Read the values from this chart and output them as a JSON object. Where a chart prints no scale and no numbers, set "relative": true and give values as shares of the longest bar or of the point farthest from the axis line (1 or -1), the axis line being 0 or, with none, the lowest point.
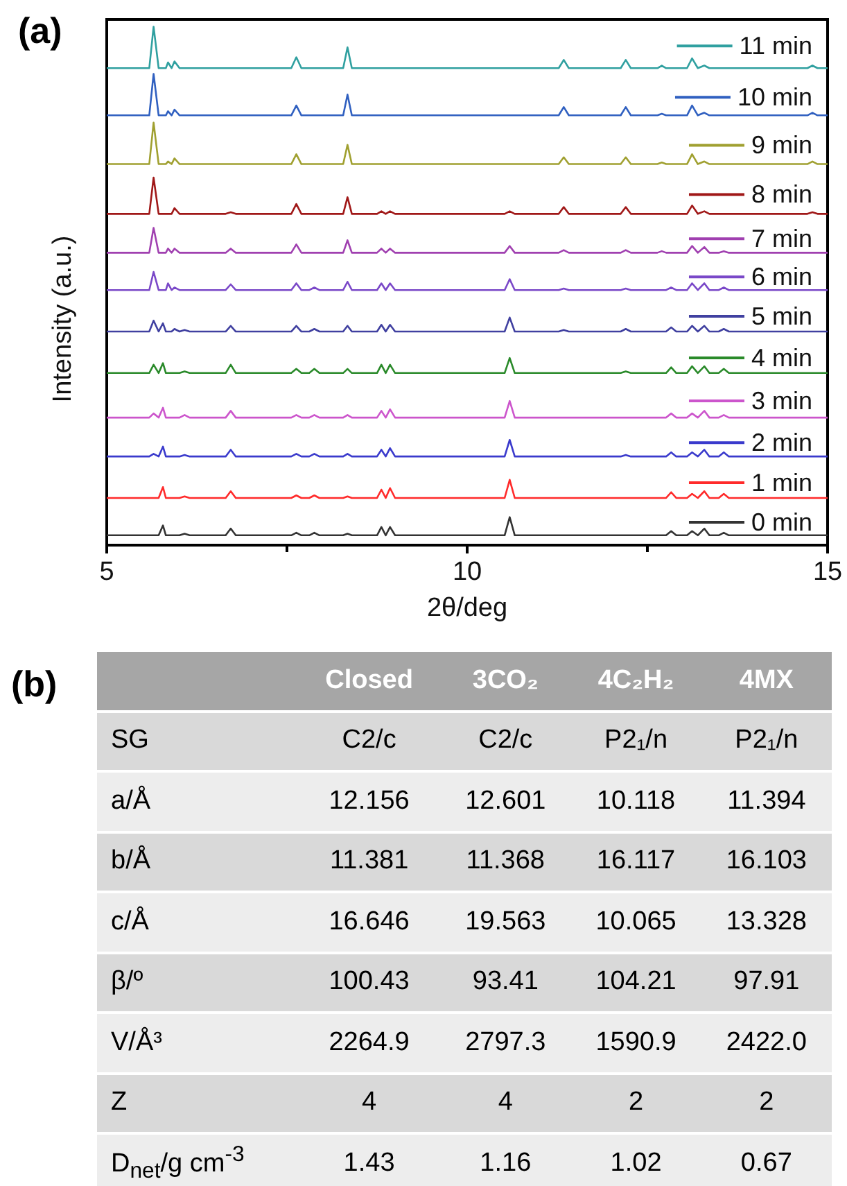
{
  "chart_data": [
    {
      "type": "line",
      "title": "(a)",
      "xlabel": "2θ/deg",
      "ylabel": "Intensity (a.u.)",
      "relative": true,
      "marker": "none",
      "line_style": "solid",
      "legend": "top right",
      "xlim": [
        5,
        15
      ],
      "xticks": [
        5,
        10,
        15
      ],
      "x": [
        5,
        5.59,
        5.65,
        5.72,
        5.78,
        5.82,
        5.85,
        5.9,
        5.94,
        6.01,
        6.08,
        6.15,
        6.65,
        6.72,
        6.79,
        7.56,
        7.63,
        7.7,
        7.81,
        7.88,
        7.95,
        8.28,
        8.34,
        8.4,
        8.75,
        8.81,
        8.87,
        8.93,
        9.0,
        10.52,
        10.59,
        10.66,
        11.27,
        11.34,
        11.41,
        12.13,
        12.2,
        12.27,
        12.64,
        12.7,
        12.76,
        12.83,
        12.9,
        13.05,
        13.12,
        13.2,
        13.29,
        13.36,
        13.49,
        13.56,
        13.63,
        14.72,
        14.79,
        14.86,
        15
      ],
      "series": [
        {
          "name": "0 min",
          "color": "#333333",
          "values": [
            0.019,
            0.019,
            0.019,
            0.019,
            0.038,
            0.019,
            0.019,
            0.019,
            0.019,
            0.019,
            0.022,
            0.019,
            0.019,
            0.032,
            0.019,
            0.019,
            0.024,
            0.019,
            0.019,
            0.024,
            0.019,
            0.019,
            0.022,
            0.019,
            0.019,
            0.035,
            0.019,
            0.035,
            0.019,
            0.019,
            0.054,
            0.019,
            0.019,
            0.019,
            0.019,
            0.019,
            0.019,
            0.019,
            0.019,
            0.019,
            0.019,
            0.027,
            0.019,
            0.019,
            0.027,
            0.019,
            0.032,
            0.019,
            0.019,
            0.024,
            0.019,
            0.019,
            0.019,
            0.019,
            0.019
          ]
        },
        {
          "name": "1 min",
          "color": "#ff2a2a",
          "values": [
            0.091,
            0.091,
            0.091,
            0.091,
            0.112,
            0.091,
            0.091,
            0.091,
            0.091,
            0.091,
            0.094,
            0.091,
            0.091,
            0.104,
            0.091,
            0.091,
            0.096,
            0.091,
            0.091,
            0.096,
            0.091,
            0.091,
            0.094,
            0.091,
            0.091,
            0.107,
            0.091,
            0.11,
            0.091,
            0.091,
            0.126,
            0.091,
            0.091,
            0.091,
            0.091,
            0.091,
            0.091,
            0.091,
            0.091,
            0.091,
            0.091,
            0.102,
            0.091,
            0.091,
            0.099,
            0.091,
            0.104,
            0.091,
            0.091,
            0.099,
            0.091,
            0.091,
            0.091,
            0.091,
            0.091
          ]
        },
        {
          "name": "2 min",
          "color": "#3a3acc",
          "values": [
            0.171,
            0.171,
            0.176,
            0.171,
            0.19,
            0.171,
            0.171,
            0.171,
            0.171,
            0.171,
            0.174,
            0.171,
            0.171,
            0.184,
            0.171,
            0.171,
            0.176,
            0.171,
            0.171,
            0.176,
            0.171,
            0.171,
            0.176,
            0.171,
            0.171,
            0.184,
            0.171,
            0.187,
            0.171,
            0.171,
            0.203,
            0.171,
            0.171,
            0.171,
            0.171,
            0.171,
            0.174,
            0.171,
            0.171,
            0.171,
            0.171,
            0.179,
            0.171,
            0.171,
            0.179,
            0.171,
            0.184,
            0.171,
            0.171,
            0.179,
            0.171,
            0.171,
            0.171,
            0.171,
            0.171
          ]
        },
        {
          "name": "3 min",
          "color": "#cc55cc",
          "values": [
            0.246,
            0.246,
            0.254,
            0.246,
            0.265,
            0.246,
            0.246,
            0.246,
            0.246,
            0.246,
            0.251,
            0.246,
            0.246,
            0.259,
            0.246,
            0.246,
            0.251,
            0.246,
            0.246,
            0.251,
            0.246,
            0.246,
            0.251,
            0.246,
            0.246,
            0.259,
            0.246,
            0.262,
            0.246,
            0.246,
            0.278,
            0.246,
            0.246,
            0.246,
            0.246,
            0.246,
            0.246,
            0.246,
            0.246,
            0.246,
            0.246,
            0.254,
            0.246,
            0.246,
            0.254,
            0.246,
            0.259,
            0.246,
            0.246,
            0.251,
            0.246,
            0.246,
            0.246,
            0.246,
            0.246
          ]
        },
        {
          "name": "4 min",
          "color": "#2a8a2a",
          "values": [
            0.332,
            0.332,
            0.348,
            0.332,
            0.351,
            0.332,
            0.332,
            0.332,
            0.332,
            0.332,
            0.335,
            0.332,
            0.332,
            0.348,
            0.332,
            0.332,
            0.34,
            0.332,
            0.332,
            0.34,
            0.332,
            0.332,
            0.34,
            0.332,
            0.332,
            0.348,
            0.332,
            0.348,
            0.332,
            0.332,
            0.361,
            0.332,
            0.332,
            0.332,
            0.332,
            0.332,
            0.335,
            0.332,
            0.332,
            0.332,
            0.332,
            0.343,
            0.332,
            0.332,
            0.345,
            0.332,
            0.345,
            0.332,
            0.332,
            0.34,
            0.332,
            0.332,
            0.332,
            0.332,
            0.332
          ]
        },
        {
          "name": "5 min",
          "color": "#4040a0",
          "values": [
            0.412,
            0.412,
            0.433,
            0.412,
            0.428,
            0.412,
            0.412,
            0.412,
            0.417,
            0.412,
            0.415,
            0.412,
            0.412,
            0.423,
            0.412,
            0.412,
            0.423,
            0.412,
            0.412,
            0.417,
            0.412,
            0.412,
            0.423,
            0.412,
            0.412,
            0.425,
            0.412,
            0.425,
            0.412,
            0.412,
            0.439,
            0.412,
            0.412,
            0.415,
            0.412,
            0.412,
            0.417,
            0.412,
            0.412,
            0.412,
            0.412,
            0.42,
            0.412,
            0.412,
            0.423,
            0.412,
            0.423,
            0.412,
            0.412,
            0.417,
            0.412,
            0.412,
            0.412,
            0.412,
            0.412
          ]
        },
        {
          "name": "6 min",
          "color": "#7a48c8",
          "values": [
            0.492,
            0.492,
            0.527,
            0.492,
            0.492,
            0.492,
            0.505,
            0.492,
            0.497,
            0.492,
            0.492,
            0.492,
            0.492,
            0.503,
            0.492,
            0.492,
            0.505,
            0.492,
            0.492,
            0.497,
            0.492,
            0.492,
            0.508,
            0.492,
            0.492,
            0.505,
            0.492,
            0.505,
            0.492,
            0.492,
            0.513,
            0.492,
            0.492,
            0.495,
            0.492,
            0.492,
            0.495,
            0.492,
            0.492,
            0.492,
            0.492,
            0.497,
            0.492,
            0.492,
            0.505,
            0.492,
            0.505,
            0.492,
            0.492,
            0.497,
            0.492,
            0.492,
            0.492,
            0.492,
            0.492
          ]
        },
        {
          "name": "7 min",
          "color": "#a040b0",
          "values": [
            0.564,
            0.564,
            0.612,
            0.564,
            0.564,
            0.564,
            0.572,
            0.564,
            0.572,
            0.564,
            0.564,
            0.564,
            0.564,
            0.572,
            0.564,
            0.564,
            0.58,
            0.564,
            0.564,
            0.564,
            0.564,
            0.564,
            0.588,
            0.564,
            0.564,
            0.572,
            0.564,
            0.572,
            0.564,
            0.564,
            0.577,
            0.564,
            0.564,
            0.569,
            0.564,
            0.564,
            0.569,
            0.564,
            0.564,
            0.567,
            0.564,
            0.564,
            0.564,
            0.564,
            0.577,
            0.564,
            0.575,
            0.564,
            0.564,
            0.567,
            0.564,
            0.564,
            0.564,
            0.564,
            0.564
          ]
        },
        {
          "name": "8 min",
          "color": "#a01818",
          "values": [
            0.639,
            0.639,
            0.709,
            0.639,
            0.639,
            0.639,
            0.639,
            0.639,
            0.65,
            0.639,
            0.639,
            0.639,
            0.639,
            0.642,
            0.639,
            0.639,
            0.658,
            0.639,
            0.639,
            0.639,
            0.639,
            0.639,
            0.671,
            0.639,
            0.639,
            0.644,
            0.639,
            0.644,
            0.639,
            0.639,
            0.644,
            0.639,
            0.639,
            0.652,
            0.639,
            0.639,
            0.652,
            0.639,
            0.639,
            0.639,
            0.639,
            0.639,
            0.639,
            0.639,
            0.655,
            0.639,
            0.644,
            0.639,
            0.639,
            0.639,
            0.639,
            0.639,
            0.642,
            0.639,
            0.639
          ]
        },
        {
          "name": "9 min",
          "color": "#a0a030",
          "values": [
            0.735,
            0.735,
            0.815,
            0.735,
            0.735,
            0.735,
            0.74,
            0.735,
            0.746,
            0.735,
            0.735,
            0.735,
            0.735,
            0.735,
            0.735,
            0.735,
            0.754,
            0.735,
            0.735,
            0.735,
            0.735,
            0.735,
            0.772,
            0.735,
            0.735,
            0.735,
            0.735,
            0.735,
            0.735,
            0.735,
            0.735,
            0.735,
            0.735,
            0.748,
            0.735,
            0.735,
            0.748,
            0.735,
            0.735,
            0.738,
            0.735,
            0.735,
            0.735,
            0.735,
            0.754,
            0.735,
            0.74,
            0.735,
            0.735,
            0.735,
            0.735,
            0.735,
            0.74,
            0.735,
            0.735
          ]
        },
        {
          "name": "10 min",
          "color": "#3060c0",
          "values": [
            0.829,
            0.829,
            0.909,
            0.829,
            0.829,
            0.829,
            0.837,
            0.829,
            0.84,
            0.829,
            0.829,
            0.829,
            0.829,
            0.829,
            0.829,
            0.829,
            0.848,
            0.829,
            0.829,
            0.829,
            0.829,
            0.829,
            0.869,
            0.829,
            0.829,
            0.829,
            0.829,
            0.829,
            0.829,
            0.829,
            0.829,
            0.829,
            0.829,
            0.845,
            0.829,
            0.829,
            0.845,
            0.829,
            0.829,
            0.832,
            0.829,
            0.829,
            0.829,
            0.829,
            0.848,
            0.829,
            0.834,
            0.829,
            0.829,
            0.829,
            0.829,
            0.829,
            0.834,
            0.829,
            0.829
          ]
        },
        {
          "name": "11 min",
          "color": "#30a0a0",
          "values": [
            0.92,
            0.92,
            1,
            0.92,
            0.92,
            0.92,
            0.931,
            0.92,
            0.933,
            0.92,
            0.92,
            0.92,
            0.92,
            0.92,
            0.92,
            0.92,
            0.941,
            0.92,
            0.92,
            0.92,
            0.92,
            0.92,
            0.96,
            0.92,
            0.92,
            0.92,
            0.92,
            0.92,
            0.92,
            0.92,
            0.92,
            0.92,
            0.92,
            0.936,
            0.92,
            0.92,
            0.936,
            0.92,
            0.92,
            0.925,
            0.92,
            0.92,
            0.92,
            0.92,
            0.939,
            0.92,
            0.925,
            0.92,
            0.92,
            0.92,
            0.92,
            0.92,
            0.925,
            0.92,
            0.92
          ]
        }
      ]
    },
    {
      "type": "other",
      "title": "(b)",
      "categories": [
        null,
        "Closed",
        "3CO₂",
        "4C₂H₂",
        "4MX"
      ],
      "y_categories": [
        "SG",
        "a/Å",
        "b/Å",
        "c/Å",
        "β/º",
        "V/Å³",
        "Z",
        "D$_{net}$/g cm$^{-3}$"
      ],
      "cell_labels": [
        [
          "C2/c",
          "C2/c",
          "P2₁/n",
          "P2₁/n"
        ],
        [
          "12.156",
          "12.601",
          "10.118",
          "11.394"
        ],
        [
          "11.381",
          "11.368",
          "16.117",
          "16.103"
        ],
        [
          "16.646",
          "19.563",
          "10.065",
          "13.328"
        ],
        [
          "100.43",
          "93.41",
          "104.21",
          "97.91"
        ],
        [
          "2264.9",
          "2797.3",
          "1590.9",
          "2422.0"
        ],
        [
          "4",
          "4",
          "2",
          "2"
        ],
        [
          "1.43",
          "1.16",
          "1.02",
          "0.67"
        ]
      ]
    }
  ]
}
